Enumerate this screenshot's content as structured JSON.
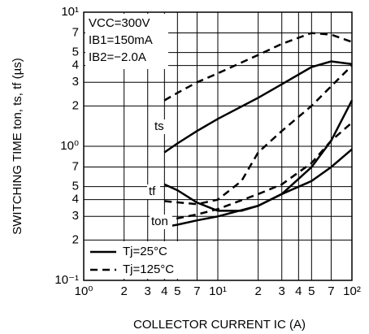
{
  "chart_data": {
    "type": "line",
    "x_label": "COLLECTOR CURRENT   IC (A)",
    "y_label": "SWITCHING TIME   ton, ts, tf (µs)",
    "xscale": "log",
    "yscale": "log",
    "xlim": [
      1,
      100
    ],
    "ylim": [
      0.1,
      10
    ],
    "xticks": [
      {
        "value": 1,
        "label": "10⁰"
      },
      2,
      3,
      4,
      5,
      7,
      {
        "value": 10,
        "label": "10¹"
      },
      {
        "value": 20,
        "label": "2"
      },
      {
        "value": 30,
        "label": "3"
      },
      {
        "value": 40,
        "label": "4"
      },
      {
        "value": 50,
        "label": "5"
      },
      {
        "value": 70,
        "label": "7"
      },
      {
        "value": 100,
        "label": "10²"
      }
    ],
    "yticks": [
      {
        "value": 0.1,
        "label": "10⁻¹"
      },
      {
        "value": 0.2,
        "label": "2"
      },
      {
        "value": 0.3,
        "label": "3"
      },
      {
        "value": 0.4,
        "label": "4"
      },
      {
        "value": 0.5,
        "label": "5"
      },
      {
        "value": 0.7,
        "label": "7"
      },
      {
        "value": 1,
        "label": "10⁰"
      },
      2,
      3,
      4,
      5,
      7,
      {
        "value": 10,
        "label": "10¹"
      }
    ],
    "grid": true,
    "conditions": [
      "VCC=300V",
      "IB1=150mA",
      "IB2=−2.0A"
    ],
    "curve_labels": [
      "ts",
      "tf",
      "ton"
    ],
    "series": [
      {
        "name": "Tj=25°C",
        "style": "solid",
        "color": "#000000",
        "curves": [
          {
            "x": [
              4,
              5,
              7,
              10,
              20,
              30,
              50,
              70,
              100
            ],
            "values": [
              0.9,
              1.05,
              1.3,
              1.6,
              2.3,
              2.9,
              3.9,
              4.3,
              4.1
            ]
          },
          {
            "x": [
              4,
              5,
              7,
              10,
              15,
              20,
              30,
              50,
              70,
              100
            ],
            "values": [
              0.52,
              0.47,
              0.38,
              0.33,
              0.33,
              0.36,
              0.44,
              0.7,
              1.1,
              2.2
            ]
          },
          {
            "x": [
              4,
              5,
              7,
              10,
              20,
              30,
              50,
              70,
              100
            ],
            "values": [
              0.25,
              0.26,
              0.28,
              0.3,
              0.36,
              0.44,
              0.55,
              0.7,
              0.95
            ]
          }
        ]
      },
      {
        "name": "Tj=125°C",
        "style": "dashed",
        "color": "#000000",
        "curves": [
          {
            "x": [
              4,
              5,
              7,
              10,
              20,
              30,
              50,
              70,
              100
            ],
            "values": [
              2.2,
              2.5,
              3.0,
              3.5,
              4.8,
              5.8,
              7.0,
              6.8,
              6.0
            ]
          },
          {
            "x": [
              4,
              7,
              10,
              15,
              20,
              30,
              50,
              70,
              100
            ],
            "values": [
              0.39,
              0.37,
              0.4,
              0.55,
              0.9,
              1.3,
              2.0,
              2.8,
              4.0
            ]
          },
          {
            "x": [
              4,
              5,
              7,
              10,
              20,
              30,
              50,
              70,
              100
            ],
            "values": [
              0.28,
              0.29,
              0.31,
              0.34,
              0.44,
              0.52,
              0.75,
              1.1,
              1.5
            ]
          }
        ]
      }
    ]
  }
}
